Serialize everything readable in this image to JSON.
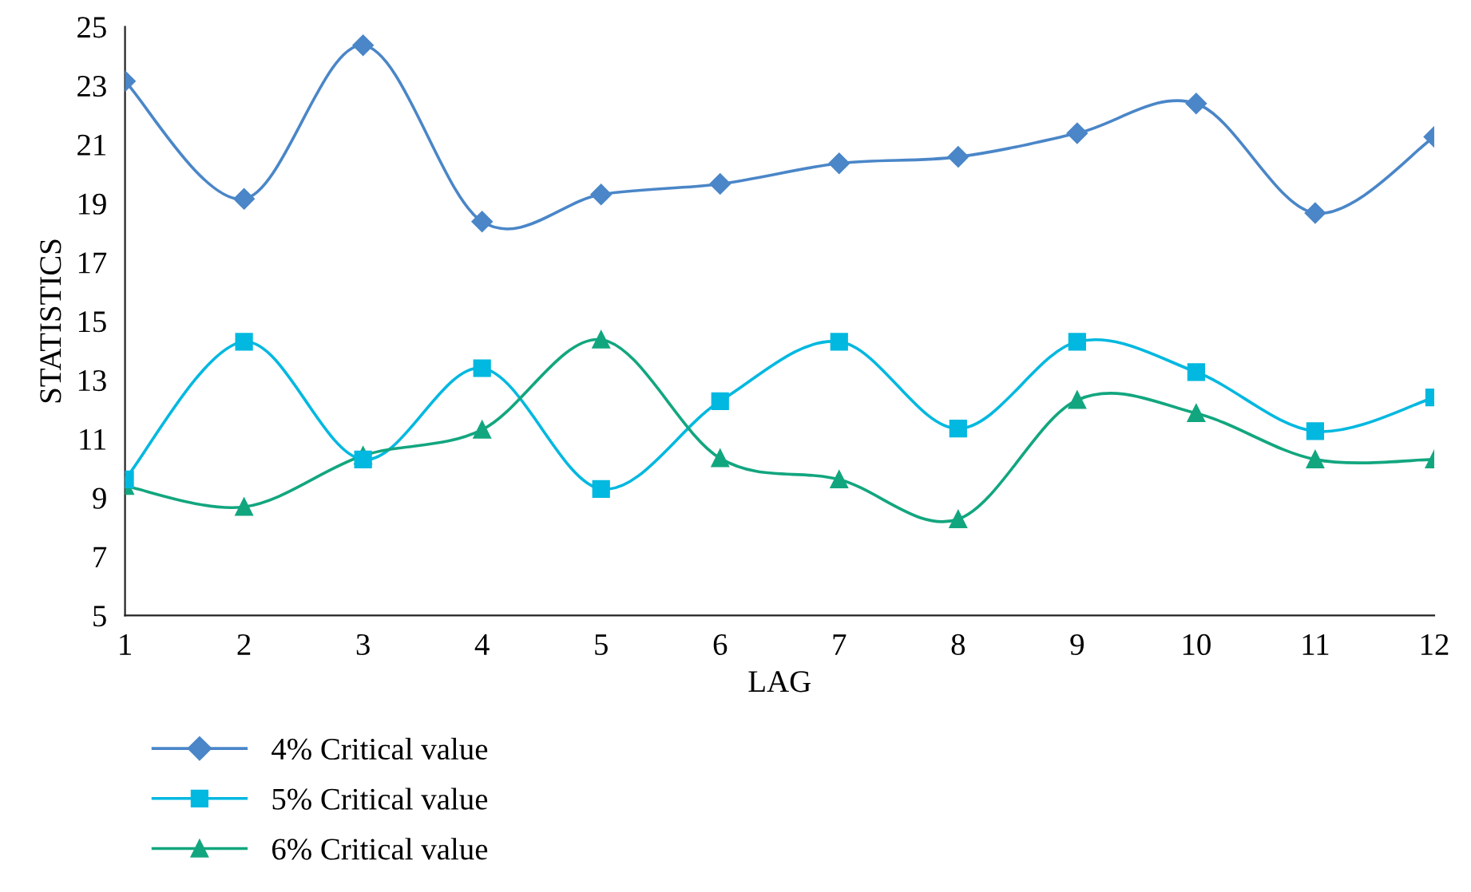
{
  "chart_data": {
    "type": "line",
    "xlabel": "LAG",
    "ylabel": "STATISTICS",
    "x": [
      1,
      2,
      3,
      4,
      5,
      6,
      7,
      8,
      9,
      10,
      11,
      12
    ],
    "xlim": [
      1,
      12
    ],
    "xticks": [
      1,
      2,
      3,
      4,
      5,
      6,
      7,
      8,
      9,
      10,
      11,
      12
    ],
    "ylim": [
      5,
      25
    ],
    "yticks": [
      5,
      7,
      9,
      11,
      13,
      15,
      17,
      19,
      21,
      23,
      25
    ],
    "grid": false,
    "legend": "bottom",
    "line_style": "solid",
    "series": [
      {
        "name": "4% Critical value",
        "color": "#4a86c8",
        "marker": "diamond",
        "values": [
          23.15,
          19.15,
          24.37,
          18.38,
          19.3,
          19.66,
          20.36,
          20.58,
          21.38,
          22.39,
          18.67,
          21.26
        ]
      },
      {
        "name": "5% Critical value",
        "color": "#00b8e0",
        "marker": "square",
        "values": [
          9.62,
          14.3,
          10.3,
          13.4,
          9.3,
          12.28,
          14.3,
          11.35,
          14.3,
          13.27,
          11.26,
          12.41
        ]
      },
      {
        "name": "6% Critical value",
        "color": "#12a67f",
        "marker": "triangle",
        "values": [
          9.4,
          8.69,
          10.43,
          11.31,
          14.37,
          10.34,
          9.62,
          8.27,
          12.32,
          11.87,
          10.3,
          10.3
        ]
      }
    ]
  }
}
